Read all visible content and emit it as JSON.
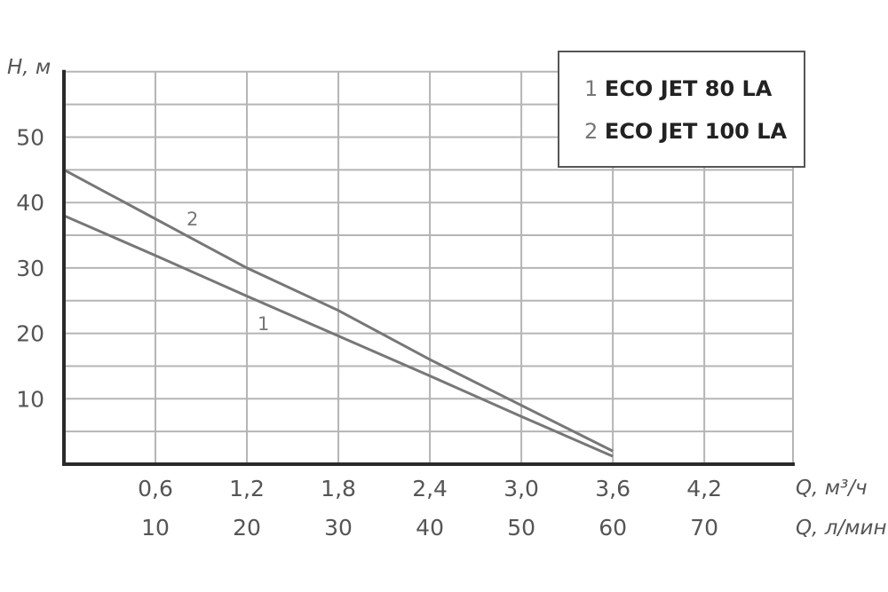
{
  "chart_data": {
    "type": "line",
    "title": "",
    "ylabel": "H, м",
    "xlabel": "Q, м³/ч",
    "xlabel_secondary": "Q, л/мин",
    "ylim": [
      0,
      60
    ],
    "xlim": [
      0,
      4.8
    ],
    "grid": true,
    "y_ticks": [
      10,
      20,
      30,
      40,
      50
    ],
    "y_tick_labels": [
      "10",
      "20",
      "30",
      "40",
      "50"
    ],
    "y_minor_gridlines_every": 5,
    "x_ticks": [
      0.6,
      1.2,
      1.8,
      2.4,
      3.0,
      3.6,
      4.2
    ],
    "x_tick_labels": [
      "0,6",
      "1,2",
      "1,8",
      "2,4",
      "3,0",
      "3,6",
      "4,2"
    ],
    "x_tick_labels_secondary": [
      "10",
      "20",
      "30",
      "40",
      "50",
      "60",
      "70"
    ],
    "legend_position": "top-right",
    "series": [
      {
        "name": "ECO JET 80 LA",
        "label": "1",
        "x": [
          0,
          0.6,
          1.2,
          1.8,
          2.4,
          3.0,
          3.6
        ],
        "values": [
          38,
          31.9,
          25.7,
          19.6,
          13.5,
          7.3,
          1.2
        ]
      },
      {
        "name": "ECO JET 100 LA",
        "label": "2",
        "x": [
          0,
          0.6,
          1.2,
          1.8,
          2.4,
          3.0,
          3.6
        ],
        "values": [
          45,
          37.5,
          30,
          23.5,
          16,
          9,
          2
        ]
      }
    ]
  },
  "legend": {
    "items": [
      {
        "num": "1",
        "name": "ECO JET 80 LA"
      },
      {
        "num": "2",
        "name": "ECO JET 100 LA"
      }
    ]
  },
  "labels": {
    "y_axis_title": "H, м",
    "x_axis_title_1": "Q, м³/ч",
    "x_axis_title_2": "Q, л/мин",
    "curve_1": "1",
    "curve_2": "2"
  },
  "colors": {
    "grid": "#b5b5b5",
    "axis": "#2a2a2a",
    "curve": "#777777",
    "text": "#555555"
  }
}
